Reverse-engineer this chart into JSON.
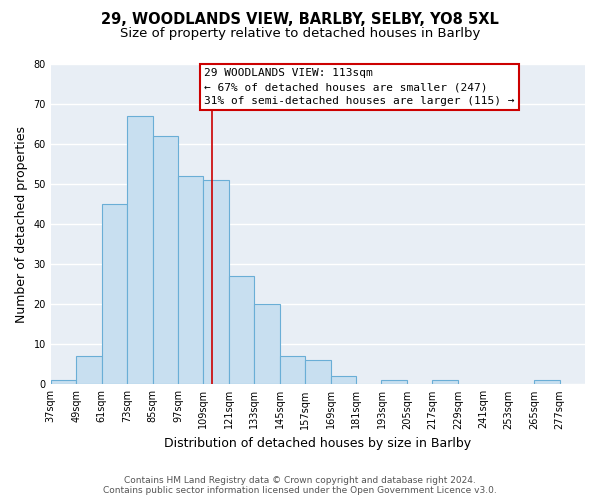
{
  "title": "29, WOODLANDS VIEW, BARLBY, SELBY, YO8 5XL",
  "subtitle": "Size of property relative to detached houses in Barlby",
  "xlabel": "Distribution of detached houses by size in Barlby",
  "ylabel": "Number of detached properties",
  "bins_left": [
    37,
    49,
    61,
    73,
    85,
    97,
    109,
    121,
    133,
    145,
    157,
    169,
    181,
    193,
    205,
    217,
    229,
    241,
    253,
    265
  ],
  "bin_width": 12,
  "values": [
    1,
    7,
    45,
    67,
    62,
    52,
    51,
    27,
    20,
    7,
    6,
    2,
    0,
    1,
    0,
    1,
    0,
    0,
    0,
    1
  ],
  "bar_color": "#c8dff0",
  "bar_edge_color": "#6aaed6",
  "ylim": [
    0,
    80
  ],
  "yticks": [
    0,
    10,
    20,
    30,
    40,
    50,
    60,
    70,
    80
  ],
  "xlim": [
    37,
    289
  ],
  "xtick_labels": [
    "37sqm",
    "49sqm",
    "61sqm",
    "73sqm",
    "85sqm",
    "97sqm",
    "109sqm",
    "121sqm",
    "133sqm",
    "145sqm",
    "157sqm",
    "169sqm",
    "181sqm",
    "193sqm",
    "205sqm",
    "217sqm",
    "229sqm",
    "241sqm",
    "253sqm",
    "265sqm",
    "277sqm"
  ],
  "xtick_positions": [
    37,
    49,
    61,
    73,
    85,
    97,
    109,
    121,
    133,
    145,
    157,
    169,
    181,
    193,
    205,
    217,
    229,
    241,
    253,
    265,
    277
  ],
  "property_size": 113,
  "vline_color": "#cc0000",
  "annotation_title": "29 WOODLANDS VIEW: 113sqm",
  "annotation_line1": "← 67% of detached houses are smaller (247)",
  "annotation_line2": "31% of semi-detached houses are larger (115) →",
  "annotation_box_color": "#ffffff",
  "annotation_box_edge": "#cc0000",
  "footer_line1": "Contains HM Land Registry data © Crown copyright and database right 2024.",
  "footer_line2": "Contains public sector information licensed under the Open Government Licence v3.0.",
  "background_color": "#ffffff",
  "plot_bg_color": "#e8eef5",
  "grid_color": "#ffffff",
  "title_fontsize": 10.5,
  "subtitle_fontsize": 9.5,
  "axis_label_fontsize": 9,
  "tick_fontsize": 7,
  "annotation_fontsize": 8,
  "footer_fontsize": 6.5
}
